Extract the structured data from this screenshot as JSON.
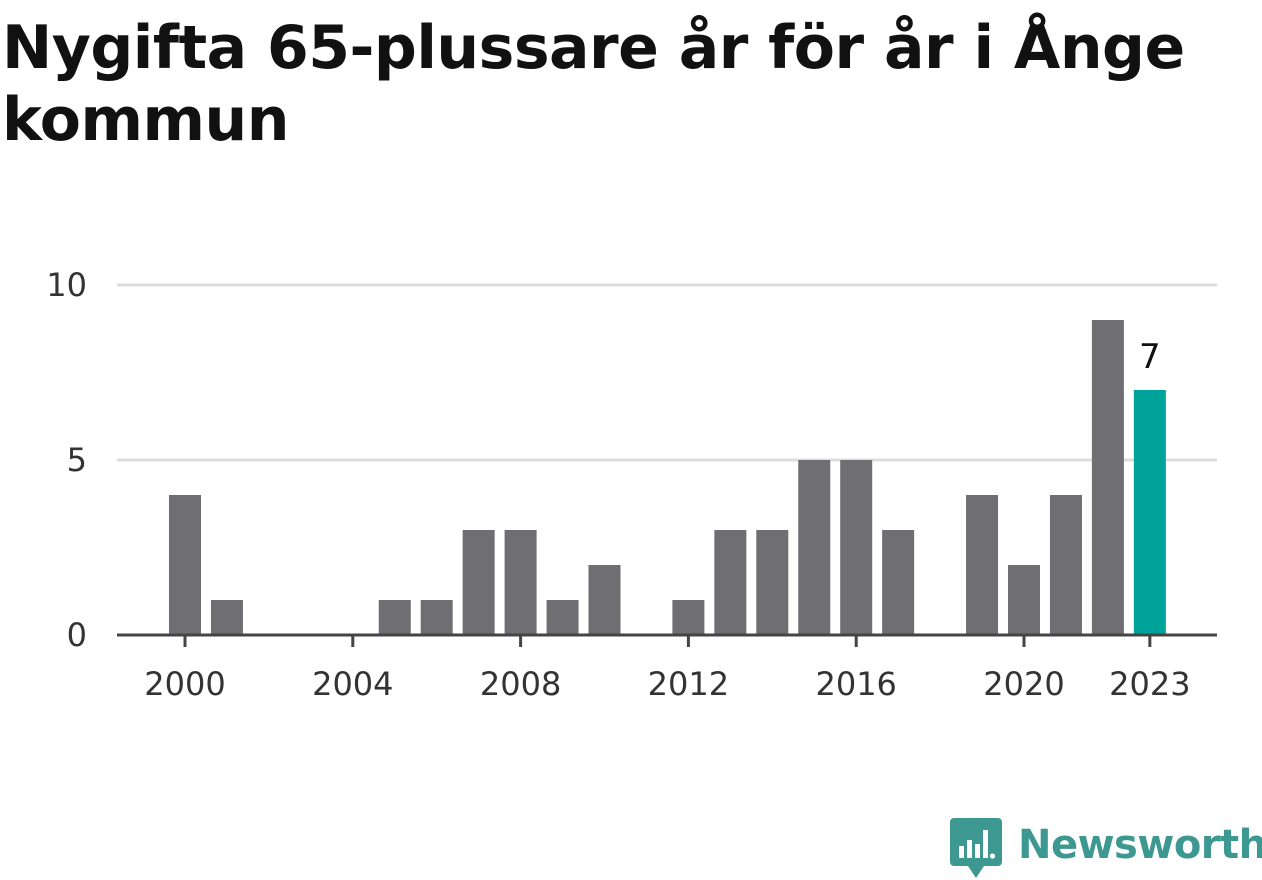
{
  "chart_data": {
    "type": "bar",
    "title": "Nygifta 65-plussare år för år i Ånge kommun",
    "categories": [
      2000,
      2001,
      2002,
      2003,
      2004,
      2005,
      2006,
      2007,
      2008,
      2009,
      2010,
      2011,
      2012,
      2013,
      2014,
      2015,
      2016,
      2017,
      2018,
      2019,
      2020,
      2021,
      2022,
      2023
    ],
    "values": [
      4,
      1,
      0,
      0,
      0,
      1,
      1,
      3,
      3,
      1,
      2,
      0,
      1,
      3,
      3,
      5,
      5,
      3,
      0,
      4,
      2,
      4,
      9,
      7
    ],
    "x_tick_labels": [
      "2000",
      "2004",
      "2008",
      "2012",
      "2016",
      "2020",
      "2023"
    ],
    "y_ticks": [
      0,
      5,
      10
    ],
    "ylim": [
      0,
      10
    ],
    "grid": true,
    "highlight": {
      "category": 2023,
      "value_label": "7"
    },
    "colors": {
      "bar": "#6f6e73",
      "highlight": "#00a39a",
      "grid": "#dddddd",
      "axis": "#444444"
    }
  },
  "brand": {
    "name": "Newsworthy",
    "color": "#3d9892"
  }
}
